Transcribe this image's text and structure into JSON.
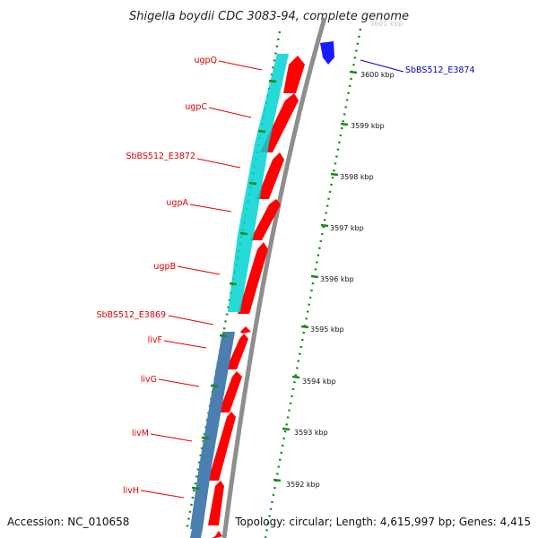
{
  "title": "Shigella boydii CDC 3083-94, complete genome",
  "accession": "Accession: NC_010658",
  "topology": "Topology: circular; Length: 4,615,997 bp; Genes: 4,415",
  "colors": {
    "forward_gene": "#ff0000",
    "backbone": "#888888",
    "operon_ugp": "#00cccc",
    "operon_liv": "#4a7fb0",
    "top_gene": "#1a1aff",
    "tick": "#1a8a1a",
    "label_red": "#e00000",
    "label_blue": "#0000cc"
  },
  "gene_labels": [
    {
      "id": "ugpQ",
      "text": "ugpQ"
    },
    {
      "id": "ugpC",
      "text": "ugpC"
    },
    {
      "id": "SbBS512_E3872",
      "text": "SbBS512_E3872"
    },
    {
      "id": "ugpA",
      "text": "ugpA"
    },
    {
      "id": "ugpB",
      "text": "ugpB"
    },
    {
      "id": "SbBS512_E3869",
      "text": "SbBS512_E3869"
    },
    {
      "id": "livF",
      "text": "livF"
    },
    {
      "id": "livG",
      "text": "livG"
    },
    {
      "id": "livM",
      "text": "livM"
    },
    {
      "id": "livH",
      "text": "livH"
    }
  ],
  "top_gene_label": "SbBS512_E3874",
  "ruler_ticks": [
    "3600 kbp",
    "3599 kbp",
    "3598 kbp",
    "3597 kbp",
    "3596 kbp",
    "3595 kbp",
    "3594 kbp",
    "3593 kbp",
    "3592 kbp"
  ],
  "partial_top_tick": "3601 kbp"
}
